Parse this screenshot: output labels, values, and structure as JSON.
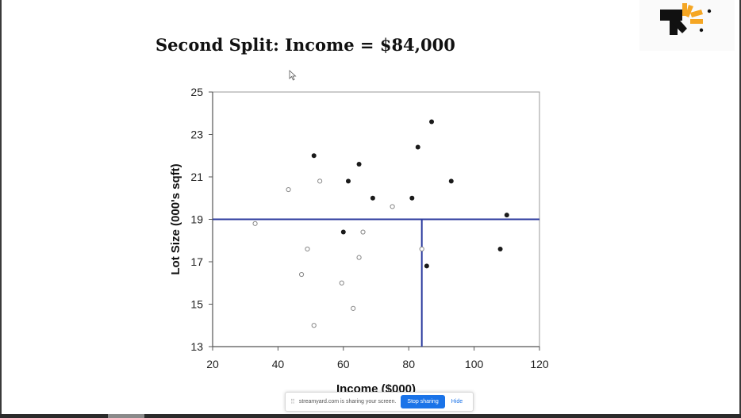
{
  "slide": {
    "title": "Second Split: Income = $84,000"
  },
  "share_bar": {
    "message": "streamyard.com is sharing your screen.",
    "stop_label": "Stop sharing",
    "hide_label": "Hide"
  },
  "colors": {
    "split_line": "#2b3a9e",
    "filled_point": "#1a1a1a",
    "hollow_point": "#888888",
    "axis": "#555555",
    "logo_orange": "#f5a623",
    "logo_black": "#111111"
  },
  "chart_data": {
    "type": "scatter",
    "title": "",
    "xlabel": "Income ($000)",
    "ylabel": "Lot Size (000's sqft)",
    "xlim": [
      20,
      120
    ],
    "ylim": [
      13,
      25
    ],
    "xticks": [
      20,
      40,
      60,
      80,
      100,
      120
    ],
    "yticks": [
      13,
      15,
      17,
      19,
      21,
      23,
      25
    ],
    "grid": false,
    "legend": "none",
    "series": [
      {
        "marker": "filled",
        "points": [
          [
            51,
            22.0
          ],
          [
            61.5,
            20.8
          ],
          [
            64.8,
            21.6
          ],
          [
            69,
            20.0
          ],
          [
            81,
            20.0
          ],
          [
            82.8,
            22.4
          ],
          [
            87,
            23.6
          ],
          [
            93,
            20.8
          ],
          [
            110,
            19.2
          ],
          [
            60,
            18.4
          ],
          [
            85.5,
            16.8
          ],
          [
            108,
            17.6
          ]
        ]
      },
      {
        "marker": "hollow",
        "points": [
          [
            43.2,
            20.4
          ],
          [
            52.8,
            20.8
          ],
          [
            75,
            19.6
          ],
          [
            33,
            18.8
          ],
          [
            49,
            17.6
          ],
          [
            66,
            18.4
          ],
          [
            64.8,
            17.2
          ],
          [
            47.2,
            16.4
          ],
          [
            59.5,
            16.0
          ],
          [
            63,
            14.8
          ],
          [
            51,
            14.0
          ],
          [
            84,
            17.6
          ]
        ]
      }
    ],
    "splits": [
      {
        "orientation": "horizontal",
        "y": 19,
        "x_from": 20,
        "x_to": 120
      },
      {
        "orientation": "vertical",
        "x": 84,
        "y_from": 13,
        "y_to": 19
      }
    ]
  }
}
